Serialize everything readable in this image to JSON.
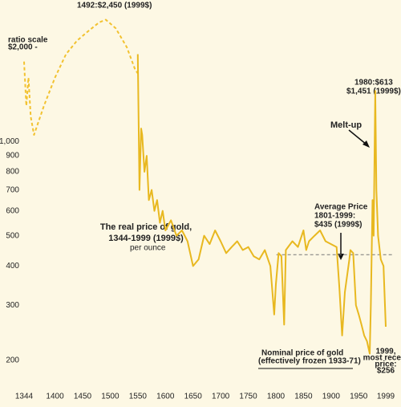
{
  "chart_data": {
    "type": "line",
    "title": [
      "The real price of gold,",
      "1344-1999 (1999$)"
    ],
    "subtitle": "per ounce",
    "log_scale": true,
    "xlim": [
      1344,
      1999
    ],
    "xticks": [
      1344,
      1400,
      1450,
      1500,
      1550,
      1600,
      1650,
      1700,
      1750,
      1800,
      1850,
      1900,
      1950,
      1999
    ],
    "ylim": [
      185,
      2700
    ],
    "yticks": [
      200,
      300,
      400,
      500,
      600,
      700,
      800,
      900,
      {
        "value": 1000,
        "label": "1,000"
      },
      {
        "value": 2000,
        "label": "$2,000 -"
      }
    ],
    "y_axis_label": "ratio scale",
    "series": [
      {
        "color": "#f2c230",
        "dashed": true,
        "x": [
          1344,
          1348,
          1352,
          1356,
          1362,
          1380,
          1400,
          1420,
          1440,
          1460,
          1480,
          1492,
          1510,
          1530,
          1545,
          1550
        ],
        "values": [
          1800,
          1300,
          1600,
          1200,
          1050,
          1300,
          1600,
          1900,
          2100,
          2250,
          2400,
          2450,
          2300,
          2000,
          1700,
          1650
        ]
      },
      {
        "color": "#e8b820",
        "dashed": false,
        "x": [
          1550,
          1553,
          1556,
          1558,
          1562,
          1566,
          1570,
          1575,
          1580,
          1585,
          1590,
          1595,
          1600,
          1610,
          1620,
          1630,
          1640,
          1650,
          1660,
          1670,
          1680,
          1690,
          1700,
          1710,
          1720,
          1730,
          1740,
          1750,
          1760,
          1770,
          1780,
          1790,
          1797,
          1800,
          1805,
          1810,
          1815,
          1818,
          1830,
          1840,
          1850,
          1855,
          1860,
          1870,
          1880,
          1890,
          1900,
          1910,
          1915,
          1920,
          1925,
          1933,
          1935,
          1940,
          1945,
          1950,
          1955,
          1960,
          1965,
          1970,
          1972,
          1975,
          1977,
          1980,
          1982,
          1985,
          1990,
          1995,
          1999
        ],
        "values": [
          1900,
          700,
          1100,
          1050,
          800,
          900,
          650,
          700,
          600,
          650,
          550,
          600,
          520,
          560,
          500,
          520,
          480,
          400,
          420,
          500,
          470,
          520,
          480,
          440,
          460,
          480,
          450,
          460,
          430,
          420,
          450,
          400,
          280,
          350,
          440,
          430,
          260,
          450,
          480,
          460,
          520,
          450,
          480,
          500,
          520,
          480,
          470,
          460,
          340,
          240,
          330,
          420,
          450,
          440,
          300,
          280,
          260,
          240,
          230,
          210,
          300,
          650,
          500,
          1451,
          700,
          500,
          420,
          400,
          256
        ]
      }
    ],
    "reference_line": {
      "value": 435,
      "from": 1801,
      "to": 1999
    },
    "annotations": {
      "peak_1492": "1492:$2,450 (1999$)",
      "peak_1980": [
        "1980:$613",
        "$1,451 (1999$)"
      ],
      "melt_up": "Melt-up",
      "average": [
        "Average Price",
        "1801-1999:",
        "$435 (1999$)"
      ],
      "nominal": [
        "Nominal price of gold",
        "(effectively frozen 1933-71)"
      ],
      "latest": [
        "1999,",
        "most recent",
        "price:",
        "$256"
      ]
    }
  }
}
